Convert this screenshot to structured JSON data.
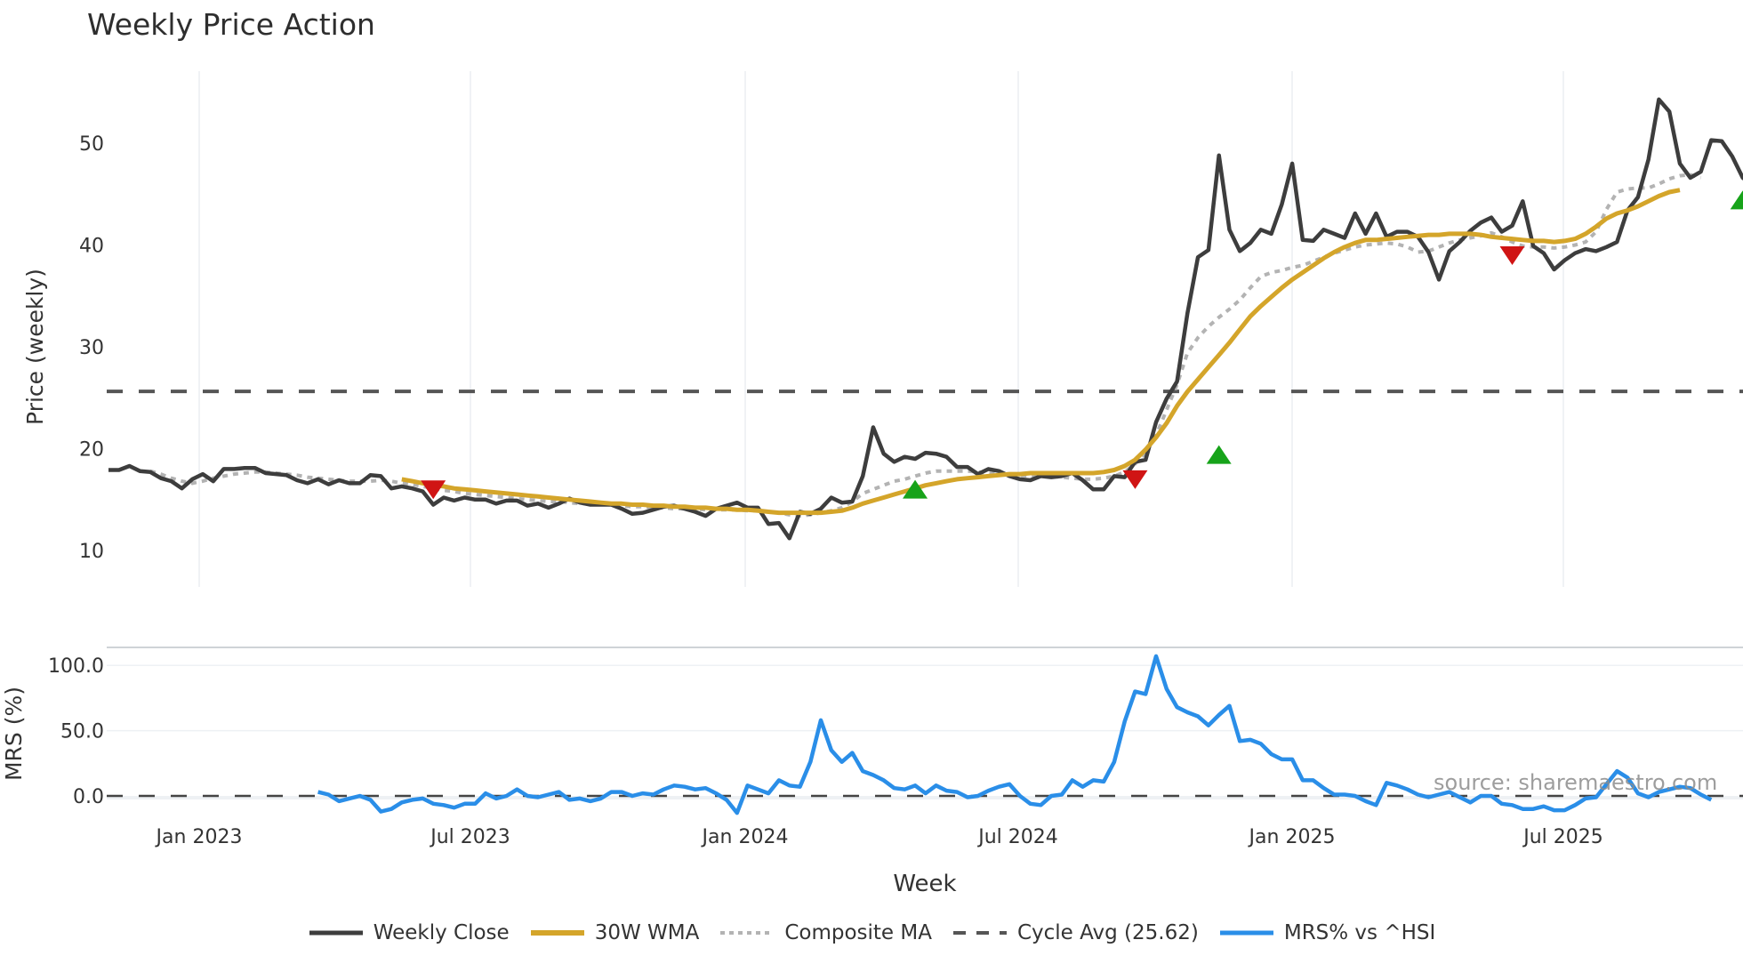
{
  "title": "Weekly Price Action",
  "source_text": "source: sharemaestro.com",
  "legend": [
    {
      "label": "Weekly Close",
      "color": "#3d3d3d",
      "style": "solid"
    },
    {
      "label": "30W WMA",
      "color": "#d4a52a",
      "style": "solid"
    },
    {
      "label": "Composite MA",
      "color": "#b3b3b3",
      "style": "dotted"
    },
    {
      "label": "Cycle Avg (25.62)",
      "color": "#555555",
      "style": "dashed"
    },
    {
      "label": "MRS% vs ^HSI",
      "color": "#2a8ee8",
      "style": "solid"
    }
  ],
  "chart_data": [
    {
      "type": "line",
      "title": "Weekly Price Action",
      "xlabel": "Week",
      "ylabel": "Price (weekly)",
      "ylim": [
        9,
        56
      ],
      "yticks": [
        10,
        20,
        30,
        40,
        50
      ],
      "xticks": [
        "Jan 2023",
        "Jul 2023",
        "Jan 2024",
        "Jul 2024",
        "Jan 2025",
        "Jul 2025"
      ],
      "grid": "vertical",
      "cycle_avg": 25.62,
      "series": [
        {
          "name": "Weekly Close",
          "start_week_offset": 0,
          "values": [
            17.9,
            17.9,
            18.3,
            17.8,
            17.7,
            17.1,
            16.8,
            16.1,
            17.0,
            17.5,
            16.8,
            18.0,
            18.0,
            18.1,
            18.1,
            17.6,
            17.5,
            17.4,
            16.9,
            16.6,
            17.0,
            16.5,
            16.9,
            16.6,
            16.6,
            17.4,
            17.3,
            16.1,
            16.3,
            16.1,
            15.8,
            14.5,
            15.2,
            14.9,
            15.2,
            15.0,
            15.0,
            14.6,
            14.9,
            14.9,
            14.4,
            14.6,
            14.2,
            14.6,
            15.1,
            14.7,
            14.5,
            14.5,
            14.5,
            14.1,
            13.6,
            13.7,
            14.0,
            14.3,
            14.4,
            14.1,
            13.8,
            13.4,
            14.1,
            14.4,
            14.7,
            14.2,
            14.2,
            12.6,
            12.7,
            11.2,
            13.8,
            13.6,
            14.1,
            15.2,
            14.7,
            14.8,
            17.3,
            22.1,
            19.5,
            18.7,
            19.2,
            19.0,
            19.6,
            19.5,
            19.2,
            18.2,
            18.2,
            17.5,
            18.0,
            17.8,
            17.3,
            17.0,
            16.9,
            17.3,
            17.2,
            17.3,
            17.6,
            16.9,
            16.0,
            16.0,
            17.3,
            17.2,
            18.7,
            18.9,
            22.6,
            24.9,
            26.6,
            33.3,
            38.8,
            39.5,
            48.8,
            41.5,
            39.4,
            40.2,
            41.5,
            41.1,
            44.0,
            48.0,
            40.5,
            40.4,
            41.5,
            41.1,
            40.7,
            43.1,
            41.1,
            43.1,
            40.8,
            41.3,
            41.3,
            40.8,
            39.3,
            36.6,
            39.4,
            40.3,
            41.4,
            42.2,
            42.7,
            41.3,
            41.9,
            44.3,
            39.9,
            39.2,
            37.6,
            38.5,
            39.2,
            39.6,
            39.4,
            39.8,
            40.3,
            43.4,
            44.7,
            48.4,
            54.3,
            53.1,
            48.0,
            46.6,
            47.2,
            50.3,
            50.2,
            48.7,
            46.6,
            45.9
          ]
        },
        {
          "name": "30W WMA",
          "start_week_offset": 28,
          "values": [
            17.0,
            16.8,
            16.6,
            16.4,
            16.3,
            16.1,
            16.0,
            15.9,
            15.8,
            15.7,
            15.6,
            15.5,
            15.4,
            15.3,
            15.2,
            15.1,
            15.0,
            14.9,
            14.8,
            14.7,
            14.6,
            14.6,
            14.5,
            14.5,
            14.4,
            14.4,
            14.3,
            14.3,
            14.2,
            14.2,
            14.1,
            14.1,
            14.0,
            14.0,
            13.9,
            13.8,
            13.7,
            13.7,
            13.7,
            13.7,
            13.7,
            13.8,
            13.9,
            14.2,
            14.6,
            14.9,
            15.2,
            15.5,
            15.8,
            16.1,
            16.4,
            16.6,
            16.8,
            17.0,
            17.1,
            17.2,
            17.3,
            17.4,
            17.5,
            17.5,
            17.6,
            17.6,
            17.6,
            17.6,
            17.6,
            17.6,
            17.6,
            17.7,
            17.9,
            18.3,
            18.9,
            19.9,
            21.1,
            22.5,
            24.2,
            25.6,
            26.8,
            28.0,
            29.2,
            30.4,
            31.7,
            33.0,
            34.0,
            34.9,
            35.8,
            36.6,
            37.3,
            38.0,
            38.7,
            39.3,
            39.8,
            40.2,
            40.5,
            40.5,
            40.6,
            40.7,
            40.8,
            40.9,
            41.0,
            41.0,
            41.1,
            41.1,
            41.1,
            41.0,
            40.8,
            40.7,
            40.6,
            40.5,
            40.4,
            40.4,
            40.3,
            40.4,
            40.6,
            41.1,
            41.8,
            42.6,
            43.1,
            43.4,
            43.8,
            44.3,
            44.8,
            45.2,
            45.4
          ]
        },
        {
          "name": "Composite MA",
          "start_week_offset": 4,
          "values": [
            17.8,
            17.5,
            17.1,
            16.8,
            16.6,
            16.8,
            17.1,
            17.3,
            17.5,
            17.6,
            17.7,
            17.7,
            17.6,
            17.5,
            17.4,
            17.2,
            17.1,
            17.0,
            16.9,
            16.8,
            16.8,
            16.8,
            16.9,
            16.8,
            16.6,
            16.5,
            16.3,
            16.1,
            15.9,
            15.8,
            15.6,
            15.5,
            15.4,
            15.3,
            15.2,
            15.1,
            15.0,
            14.9,
            14.8,
            14.8,
            14.7,
            14.6,
            14.6,
            14.5,
            14.5,
            14.4,
            14.3,
            14.3,
            14.2,
            14.2,
            14.1,
            14.1,
            14.1,
            14.0,
            14.0,
            14.0,
            14.0,
            13.9,
            13.9,
            13.8,
            13.7,
            13.5,
            13.4,
            13.5,
            13.7,
            13.9,
            14.2,
            14.8,
            15.6,
            16.0,
            16.4,
            16.8,
            17.0,
            17.3,
            17.6,
            17.8,
            17.8,
            17.8,
            17.8,
            17.7,
            17.6,
            17.5,
            17.4,
            17.4,
            17.3,
            17.3,
            17.3,
            17.2,
            17.1,
            17.0,
            17.0,
            17.1,
            17.3,
            17.7,
            18.5,
            19.6,
            21.3,
            23.8,
            26.3,
            29.4,
            30.9,
            32.0,
            32.9,
            33.7,
            34.6,
            35.8,
            36.9,
            37.3,
            37.5,
            37.8,
            38.0,
            38.4,
            38.8,
            39.2,
            39.5,
            39.8,
            40.0,
            40.1,
            40.2,
            40.1,
            39.8,
            39.3,
            39.4,
            39.8,
            40.2,
            40.5,
            40.7,
            40.9,
            41.2,
            40.8,
            40.3,
            39.9,
            39.8,
            39.8,
            39.7,
            39.8,
            40.0,
            40.3,
            41.3,
            43.5,
            45.2,
            45.5,
            45.6,
            45.6,
            46.0,
            46.5,
            46.8,
            46.9,
            46.6
          ]
        },
        {
          "name": "Signals",
          "markers": [
            {
              "type": "sell",
              "x_week": 31,
              "y": 16.0
            },
            {
              "type": "buy",
              "x_week": 77,
              "y": 15.8
            },
            {
              "type": "sell",
              "x_week": 98,
              "y": 17.0
            },
            {
              "type": "buy",
              "x_week": 106,
              "y": 19.2
            },
            {
              "type": "sell",
              "x_week": 134,
              "y": 39.0
            },
            {
              "type": "buy",
              "x_week": 156,
              "y": 44.2
            }
          ]
        }
      ]
    },
    {
      "type": "line",
      "ylabel": "MRS (%)",
      "ylim": [
        -20,
        115
      ],
      "yticks": [
        0.0,
        50.0,
        100.0
      ],
      "zero_line": "dashed",
      "series": [
        {
          "name": "MRS% vs ^HSI",
          "start_week_offset": 20,
          "values": [
            3,
            1,
            -4,
            -2,
            0,
            -3,
            -12,
            -10,
            -5,
            -3,
            -2,
            -6,
            -7,
            -9,
            -6,
            -6,
            2,
            -2,
            0,
            5,
            0,
            -1,
            1,
            3,
            -3,
            -2,
            -4,
            -2,
            3,
            3,
            0,
            2,
            1,
            5,
            8,
            7,
            5,
            6,
            2,
            -3,
            -13,
            8,
            5,
            2,
            12,
            8,
            7,
            26,
            58,
            35,
            26,
            33,
            19,
            16,
            12,
            6,
            5,
            8,
            2,
            8,
            4,
            3,
            -1,
            0,
            4,
            7,
            9,
            0,
            -6,
            -7,
            0,
            1,
            12,
            7,
            12,
            11,
            26,
            57,
            80,
            78,
            107,
            82,
            68,
            64,
            61,
            54,
            62,
            69,
            42,
            43,
            40,
            32,
            28,
            28,
            12,
            12,
            6,
            1,
            1,
            0,
            -4,
            -7,
            10,
            8,
            5,
            1,
            -1,
            1,
            3,
            -1,
            -5,
            0,
            0,
            -6,
            -7,
            -10,
            -10,
            -8,
            -11,
            -11,
            -7,
            -2,
            -1,
            9,
            19,
            14,
            2,
            -1,
            3,
            5,
            7,
            6,
            1,
            -3
          ]
        }
      ]
    }
  ],
  "axes": {
    "price": {
      "ylabel": "Price (weekly)",
      "yticks": [
        "50",
        "40",
        "30",
        "20",
        "10"
      ]
    },
    "mrs": {
      "ylabel": "MRS (%)",
      "yticks": [
        "100.0",
        "50.0",
        "0.0"
      ]
    },
    "x": {
      "label": "Week",
      "ticks": [
        "Jan 2023",
        "Jul 2023",
        "Jan 2024",
        "Jul 2024",
        "Jan 2025",
        "Jul 2025"
      ]
    }
  }
}
